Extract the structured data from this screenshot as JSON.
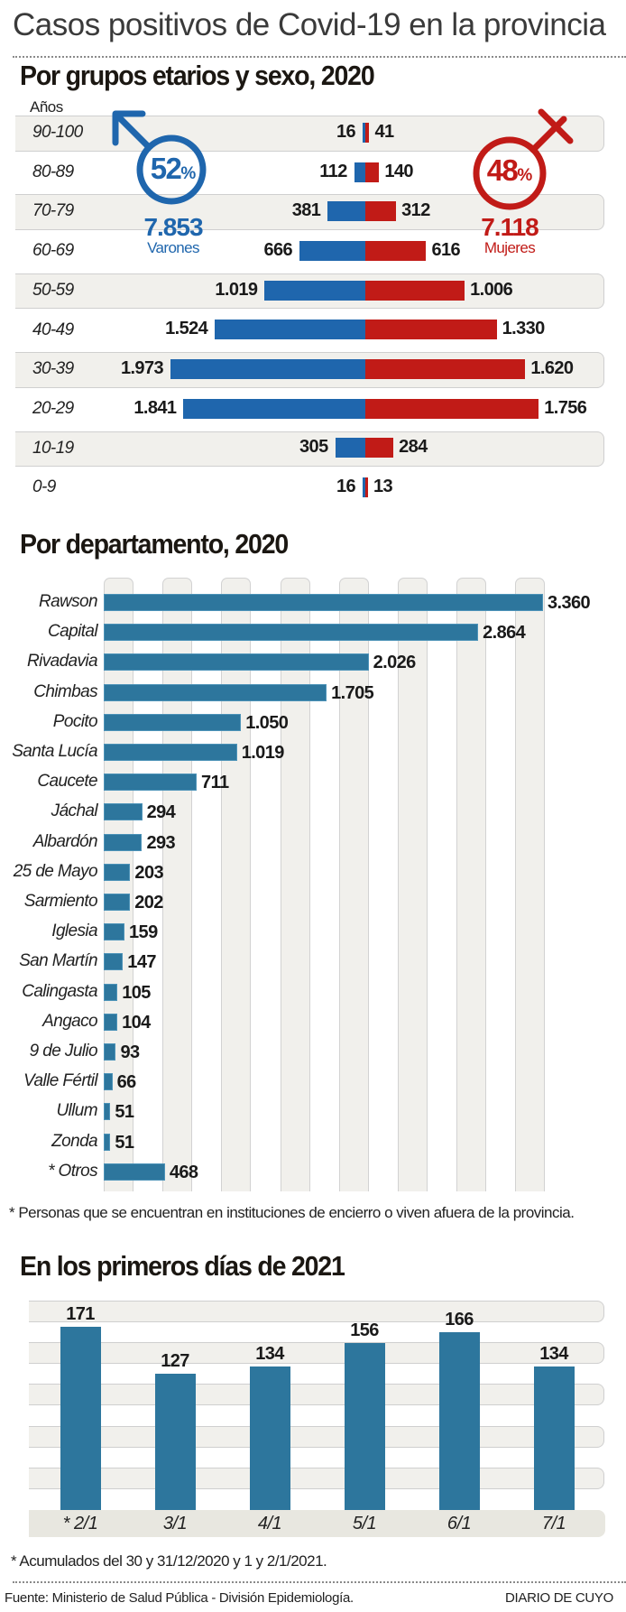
{
  "header": {
    "title": "Casos positivos de Covid-19 en la provincia"
  },
  "chart_data": [
    {
      "type": "bar",
      "orientation": "horizontal-diverging",
      "title": "Por grupos etarios y sexo, 2020",
      "ylabel": "Años",
      "categories": [
        "90-100",
        "80-89",
        "70-79",
        "60-69",
        "50-59",
        "40-49",
        "30-39",
        "20-29",
        "10-19",
        "0-9"
      ],
      "series": [
        {
          "name": "Varones",
          "color": "#1f66ad",
          "values": [
            16,
            112,
            381,
            666,
            1019,
            1524,
            1973,
            1841,
            305,
            16
          ],
          "labels": [
            "16",
            "112",
            "381",
            "666",
            "1.019",
            "1.524",
            "1.973",
            "1.841",
            "305",
            "16"
          ]
        },
        {
          "name": "Mujeres",
          "color": "#c11b17",
          "values": [
            41,
            140,
            312,
            616,
            1006,
            1330,
            1620,
            1756,
            284,
            13
          ],
          "labels": [
            "41",
            "140",
            "312",
            "616",
            "1.006",
            "1.330",
            "1.620",
            "1.756",
            "284",
            "13"
          ]
        }
      ],
      "summary": {
        "male": {
          "percent": "52",
          "percent_sign": "%",
          "total": "7.853",
          "label": "Varones"
        },
        "female": {
          "percent": "48",
          "percent_sign": "%",
          "total": "7.118",
          "label": "Mujeres"
        }
      }
    },
    {
      "type": "bar",
      "orientation": "horizontal",
      "title": "Por departamento, 2020",
      "color": "#2d769d",
      "categories": [
        "Rawson",
        "Capital",
        "Rivadavia",
        "Chimbas",
        "Pocito",
        "Santa Lucía",
        "Caucete",
        "Jáchal",
        "Albardón",
        "25 de Mayo",
        "Sarmiento",
        "Iglesia",
        "San Martín",
        "Calingasta",
        "Angaco",
        "9 de Julio",
        "Valle Fértil",
        "Ullum",
        "Zonda",
        "* Otros"
      ],
      "values": [
        3360,
        2864,
        2026,
        1705,
        1050,
        1019,
        711,
        294,
        293,
        203,
        202,
        159,
        147,
        105,
        104,
        93,
        66,
        51,
        51,
        468
      ],
      "labels": [
        "3.360",
        "2.864",
        "2.026",
        "1.705",
        "1.050",
        "1.019",
        "711",
        "294",
        "293",
        "203",
        "202",
        "159",
        "147",
        "105",
        "104",
        "93",
        "66",
        "51",
        "51",
        "468"
      ],
      "grid": true,
      "footnote": "* Personas que se encuentran en instituciones de encierro o viven afuera de la provincia."
    },
    {
      "type": "bar",
      "orientation": "vertical",
      "title": "En los primeros días de 2021",
      "color": "#2d769d",
      "categories": [
        "* 2/1",
        "3/1",
        "4/1",
        "5/1",
        "6/1",
        "7/1"
      ],
      "values": [
        171,
        127,
        134,
        156,
        166,
        134
      ],
      "labels": [
        "171",
        "127",
        "134",
        "156",
        "166",
        "134"
      ],
      "grid": true,
      "footnote": "* Acumulados del 30 y 31/12/2020 y 1 y 2/1/2021."
    }
  ],
  "footer": {
    "source": "Fuente: Ministerio de Salud Pública - División Epidemiología.",
    "brand": "DIARIO DE CUYO"
  }
}
